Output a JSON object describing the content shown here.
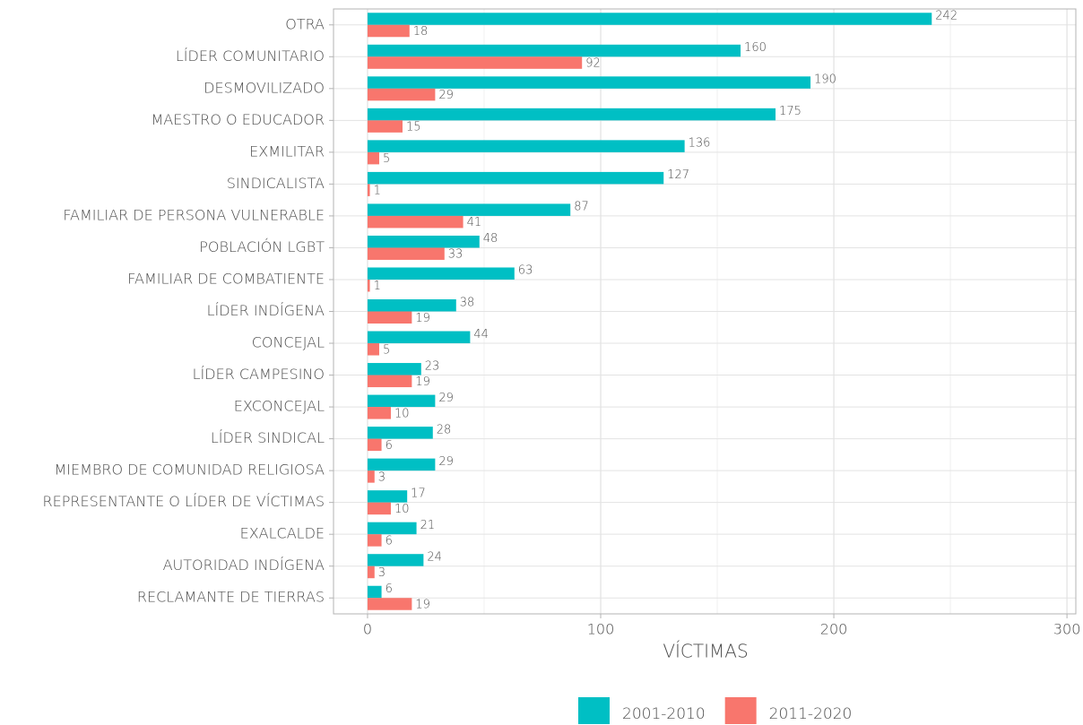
{
  "chart_data": {
    "type": "barh",
    "categories": [
      "OTRA",
      "LÍDER COMUNITARIO",
      "DESMOVILIZADO",
      "MAESTRO O EDUCADOR",
      "EXMILITAR",
      "SINDICALISTA",
      "FAMILIAR DE PERSONA VULNERABLE",
      "POBLACIÓN LGBT",
      "FAMILIAR DE COMBATIENTE",
      "LÍDER INDÍGENA",
      "CONCEJAL",
      "LÍDER CAMPESINO",
      "EXCONCEJAL",
      "LÍDER SINDICAL",
      "MIEMBRO DE COMUNIDAD RELIGIOSA",
      "REPRESENTANTE O LÍDER DE VÍCTIMAS",
      "EXALCALDE",
      "AUTORIDAD INDÍGENA",
      "RECLAMANTE DE TIERRAS"
    ],
    "series": [
      {
        "name": "2001-2010",
        "color": "#00BFC4",
        "values": [
          242,
          160,
          190,
          175,
          136,
          127,
          87,
          48,
          63,
          38,
          44,
          23,
          29,
          28,
          29,
          17,
          21,
          24,
          6
        ]
      },
      {
        "name": "2011-2020",
        "color": "#F8766D",
        "values": [
          18,
          92,
          29,
          15,
          5,
          1,
          41,
          33,
          1,
          19,
          5,
          19,
          10,
          6,
          3,
          10,
          6,
          3,
          19
        ]
      }
    ],
    "x_label": "VÍCTIMAS",
    "xlim": [
      -14.6,
      303.8
    ],
    "xticks": [
      0,
      100,
      200,
      300
    ],
    "x_minor_ticks": [
      50,
      150,
      250
    ],
    "grid": true,
    "legend": "bottom"
  }
}
